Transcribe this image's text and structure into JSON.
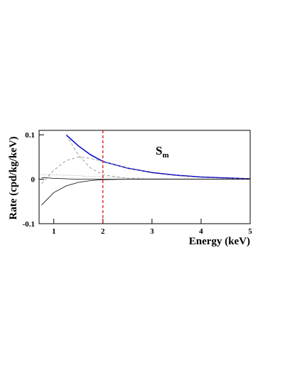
{
  "chart_data": {
    "type": "line",
    "xlabel": "Energy (keV)",
    "ylabel": "Rate (cpd/kg/keV)",
    "annotation": "S",
    "annotation_sub": "m",
    "x": [
      0.75,
      1,
      1.25,
      1.5,
      1.75,
      2,
      2.5,
      3,
      3.5,
      4,
      4.5,
      5
    ],
    "series": [
      {
        "color": "#0000cc",
        "style": "solid",
        "values": [
          null,
          null,
          0.1,
          0.075,
          0.055,
          0.04,
          0.025,
          0.015,
          0.009,
          0.005,
          0.003,
          0.001
        ]
      },
      {
        "color": "#888888",
        "style": "dashed",
        "values": [
          -0.01,
          0.02,
          0.042,
          0.05,
          0.047,
          0.04,
          0.025,
          0.014,
          0.008,
          0.004,
          0.002,
          0.001
        ]
      },
      {
        "color": "#888888",
        "style": "dashed",
        "values": [
          null,
          null,
          0.1,
          0.055,
          0.025,
          0.01,
          0.002,
          0,
          0,
          0,
          0,
          0
        ]
      },
      {
        "color": "#888888",
        "style": "dotted",
        "values": [
          0.01,
          0.01,
          0.009,
          0.008,
          0.006,
          0.005,
          0.003,
          0.002,
          0.001,
          0.001,
          0,
          0
        ]
      },
      {
        "color": "#000000",
        "style": "solid",
        "values": [
          -0.058,
          -0.03,
          -0.015,
          -0.007,
          -0.003,
          -0.001,
          0,
          0,
          0,
          0,
          0,
          0
        ]
      },
      {
        "color": "#000000",
        "style": "solid",
        "values": [
          0.004,
          0.002,
          0.001,
          0,
          0,
          0,
          0,
          0,
          0,
          0,
          0,
          0
        ]
      }
    ],
    "vline": {
      "x": 2,
      "color": "#dd0000",
      "style": "dashed"
    },
    "xlim": [
      0.7,
      5
    ],
    "ylim": [
      -0.1,
      0.11
    ],
    "xticks": [
      1,
      2,
      3,
      4,
      5
    ],
    "yticks": [
      -0.1,
      0,
      0.1
    ]
  }
}
